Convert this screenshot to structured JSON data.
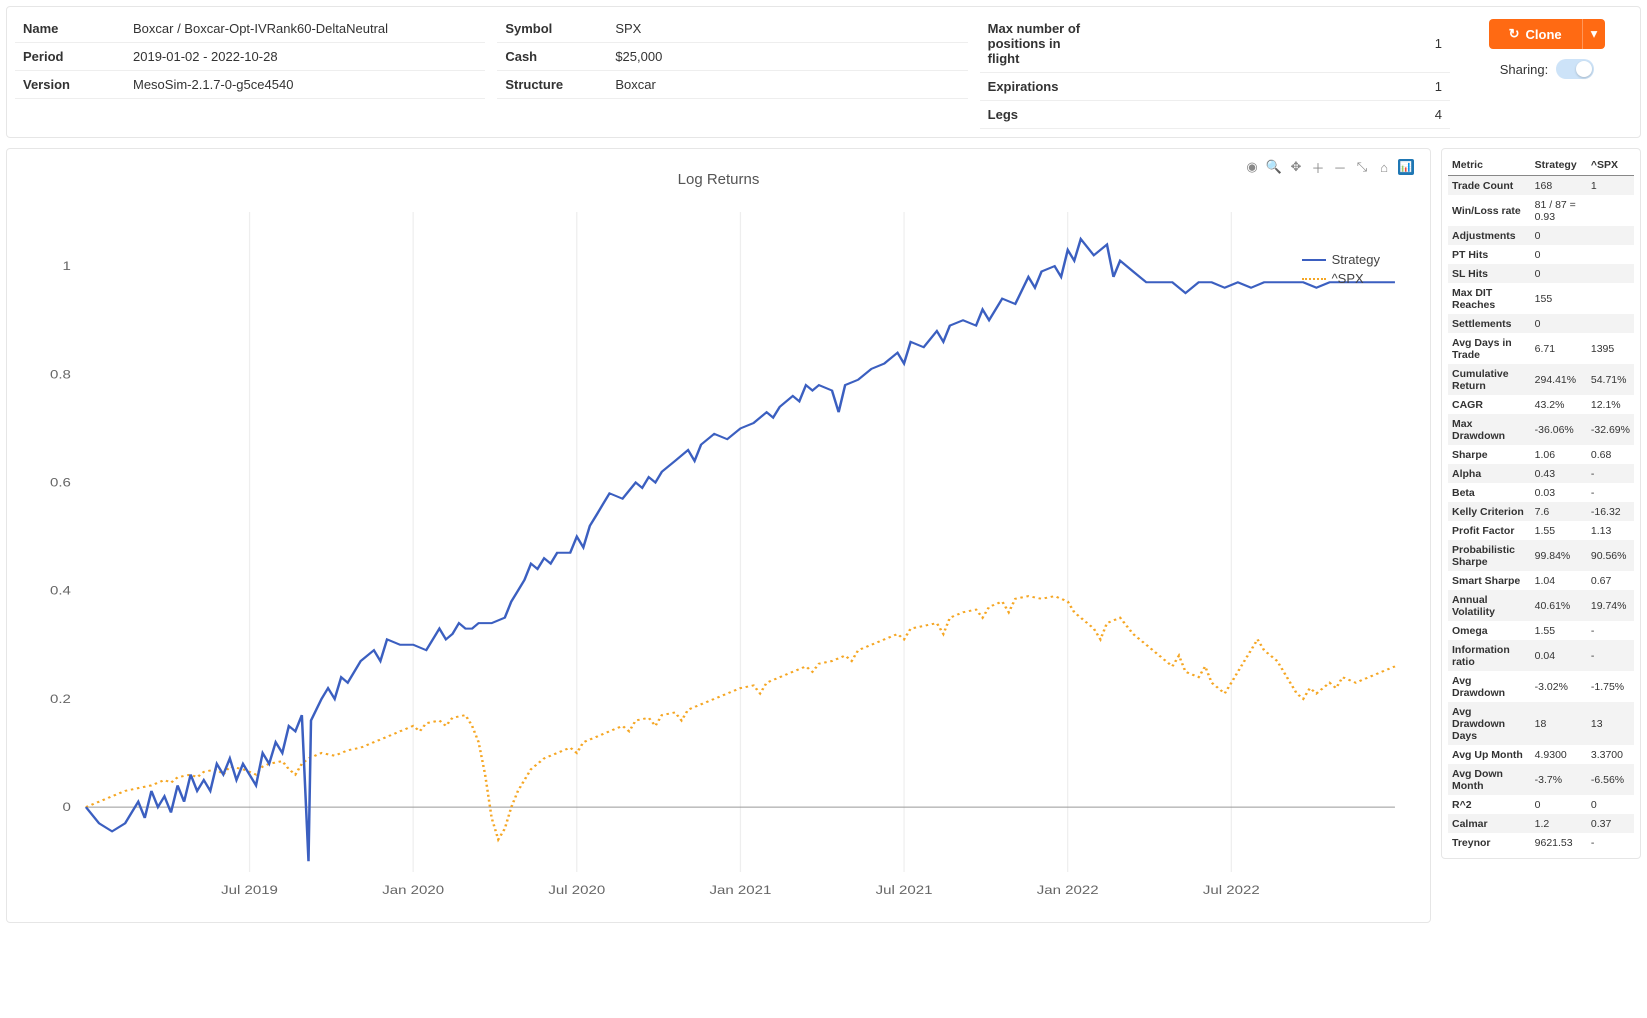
{
  "header": {
    "col1": [
      {
        "k": "Name",
        "v": "Boxcar / Boxcar-Opt-IVRank60-DeltaNeutral"
      },
      {
        "k": "Period",
        "v": "2019-01-02 - 2022-10-28"
      },
      {
        "k": "Version",
        "v": "MesoSim-2.1.7-0-g5ce4540"
      }
    ],
    "col2": [
      {
        "k": "Symbol",
        "v": "SPX"
      },
      {
        "k": "Cash",
        "v": "$25,000"
      },
      {
        "k": "Structure",
        "v": "Boxcar"
      }
    ],
    "col3": [
      {
        "k": "Max number of positions in flight",
        "v": "1"
      },
      {
        "k": "Expirations",
        "v": "1"
      },
      {
        "k": "Legs",
        "v": "4"
      }
    ],
    "clone_label": "Clone",
    "sharing_label": "Sharing:"
  },
  "chart": {
    "title": "Log Returns",
    "legend": [
      {
        "label": "Strategy",
        "color": "#3b5fc0",
        "style": "solid"
      },
      {
        "label": "^SPX",
        "color": "#f5a623",
        "style": "dash"
      }
    ],
    "x_ticks": [
      "Jul 2019",
      "Jan 2020",
      "Jul 2020",
      "Jan 2021",
      "Jul 2021",
      "Jan 2022",
      "Jul 2022"
    ],
    "x_tick_pos": [
      0.125,
      0.25,
      0.375,
      0.5,
      0.625,
      0.75,
      0.875
    ],
    "y_ticks": [
      0,
      0.2,
      0.4,
      0.6,
      0.8,
      1
    ],
    "ylim": [
      -0.12,
      1.1
    ],
    "xlim": [
      0,
      1
    ],
    "background": "#ffffff",
    "grid_color": "#eeeeee",
    "axis_color": "#999999",
    "title_fontsize": 15,
    "label_fontsize": 12,
    "strategy_color": "#3b5fc0",
    "spx_color": "#f5a623",
    "strategy": [
      [
        0.0,
        0.0
      ],
      [
        0.01,
        -0.03
      ],
      [
        0.02,
        -0.045
      ],
      [
        0.03,
        -0.03
      ],
      [
        0.04,
        0.01
      ],
      [
        0.045,
        -0.02
      ],
      [
        0.05,
        0.03
      ],
      [
        0.055,
        0.0
      ],
      [
        0.06,
        0.02
      ],
      [
        0.065,
        -0.01
      ],
      [
        0.07,
        0.04
      ],
      [
        0.075,
        0.01
      ],
      [
        0.08,
        0.06
      ],
      [
        0.085,
        0.03
      ],
      [
        0.09,
        0.05
      ],
      [
        0.095,
        0.03
      ],
      [
        0.1,
        0.08
      ],
      [
        0.105,
        0.06
      ],
      [
        0.11,
        0.09
      ],
      [
        0.115,
        0.05
      ],
      [
        0.12,
        0.08
      ],
      [
        0.13,
        0.04
      ],
      [
        0.135,
        0.1
      ],
      [
        0.14,
        0.08
      ],
      [
        0.145,
        0.12
      ],
      [
        0.15,
        0.1
      ],
      [
        0.155,
        0.15
      ],
      [
        0.16,
        0.14
      ],
      [
        0.165,
        0.17
      ],
      [
        0.17,
        -0.1
      ],
      [
        0.172,
        0.16
      ],
      [
        0.18,
        0.2
      ],
      [
        0.185,
        0.22
      ],
      [
        0.19,
        0.2
      ],
      [
        0.195,
        0.24
      ],
      [
        0.2,
        0.23
      ],
      [
        0.21,
        0.27
      ],
      [
        0.22,
        0.29
      ],
      [
        0.225,
        0.27
      ],
      [
        0.23,
        0.31
      ],
      [
        0.24,
        0.3
      ],
      [
        0.25,
        0.3
      ],
      [
        0.26,
        0.29
      ],
      [
        0.27,
        0.33
      ],
      [
        0.275,
        0.31
      ],
      [
        0.28,
        0.32
      ],
      [
        0.285,
        0.34
      ],
      [
        0.29,
        0.33
      ],
      [
        0.295,
        0.33
      ],
      [
        0.3,
        0.34
      ],
      [
        0.31,
        0.34
      ],
      [
        0.32,
        0.35
      ],
      [
        0.325,
        0.38
      ],
      [
        0.33,
        0.4
      ],
      [
        0.335,
        0.42
      ],
      [
        0.34,
        0.45
      ],
      [
        0.345,
        0.44
      ],
      [
        0.35,
        0.46
      ],
      [
        0.355,
        0.45
      ],
      [
        0.36,
        0.47
      ],
      [
        0.365,
        0.47
      ],
      [
        0.37,
        0.47
      ],
      [
        0.375,
        0.5
      ],
      [
        0.38,
        0.48
      ],
      [
        0.385,
        0.52
      ],
      [
        0.39,
        0.54
      ],
      [
        0.395,
        0.56
      ],
      [
        0.4,
        0.58
      ],
      [
        0.41,
        0.57
      ],
      [
        0.42,
        0.6
      ],
      [
        0.425,
        0.59
      ],
      [
        0.43,
        0.61
      ],
      [
        0.435,
        0.6
      ],
      [
        0.44,
        0.62
      ],
      [
        0.45,
        0.64
      ],
      [
        0.46,
        0.66
      ],
      [
        0.465,
        0.64
      ],
      [
        0.47,
        0.67
      ],
      [
        0.48,
        0.69
      ],
      [
        0.49,
        0.68
      ],
      [
        0.5,
        0.7
      ],
      [
        0.51,
        0.71
      ],
      [
        0.52,
        0.73
      ],
      [
        0.525,
        0.72
      ],
      [
        0.53,
        0.74
      ],
      [
        0.54,
        0.76
      ],
      [
        0.545,
        0.75
      ],
      [
        0.55,
        0.78
      ],
      [
        0.555,
        0.77
      ],
      [
        0.56,
        0.78
      ],
      [
        0.57,
        0.77
      ],
      [
        0.575,
        0.73
      ],
      [
        0.58,
        0.78
      ],
      [
        0.59,
        0.79
      ],
      [
        0.6,
        0.81
      ],
      [
        0.61,
        0.82
      ],
      [
        0.62,
        0.84
      ],
      [
        0.625,
        0.82
      ],
      [
        0.63,
        0.86
      ],
      [
        0.64,
        0.85
      ],
      [
        0.65,
        0.88
      ],
      [
        0.655,
        0.86
      ],
      [
        0.66,
        0.89
      ],
      [
        0.67,
        0.9
      ],
      [
        0.68,
        0.89
      ],
      [
        0.685,
        0.92
      ],
      [
        0.69,
        0.9
      ],
      [
        0.7,
        0.94
      ],
      [
        0.71,
        0.93
      ],
      [
        0.72,
        0.98
      ],
      [
        0.725,
        0.96
      ],
      [
        0.73,
        0.99
      ],
      [
        0.74,
        1.0
      ],
      [
        0.745,
        0.98
      ],
      [
        0.75,
        1.03
      ],
      [
        0.755,
        1.01
      ],
      [
        0.76,
        1.05
      ],
      [
        0.77,
        1.02
      ],
      [
        0.78,
        1.04
      ],
      [
        0.785,
        0.98
      ],
      [
        0.79,
        1.01
      ],
      [
        0.8,
        0.99
      ],
      [
        0.81,
        0.97
      ],
      [
        0.82,
        0.97
      ],
      [
        0.83,
        0.97
      ],
      [
        0.84,
        0.95
      ],
      [
        0.85,
        0.97
      ],
      [
        0.86,
        0.97
      ],
      [
        0.87,
        0.96
      ],
      [
        0.88,
        0.97
      ],
      [
        0.89,
        0.96
      ],
      [
        0.9,
        0.97
      ],
      [
        0.91,
        0.97
      ],
      [
        0.92,
        0.97
      ],
      [
        0.93,
        0.97
      ],
      [
        0.94,
        0.96
      ],
      [
        0.95,
        0.97
      ],
      [
        0.96,
        0.97
      ],
      [
        0.97,
        0.97
      ],
      [
        0.98,
        0.97
      ],
      [
        0.99,
        0.97
      ],
      [
        1.0,
        0.97
      ]
    ],
    "spx": [
      [
        0.0,
        0.0
      ],
      [
        0.01,
        0.01
      ],
      [
        0.02,
        0.02
      ],
      [
        0.03,
        0.03
      ],
      [
        0.04,
        0.035
      ],
      [
        0.05,
        0.04
      ],
      [
        0.06,
        0.05
      ],
      [
        0.065,
        0.045
      ],
      [
        0.07,
        0.055
      ],
      [
        0.08,
        0.06
      ],
      [
        0.085,
        0.055
      ],
      [
        0.09,
        0.065
      ],
      [
        0.1,
        0.07
      ],
      [
        0.105,
        0.06
      ],
      [
        0.11,
        0.075
      ],
      [
        0.12,
        0.07
      ],
      [
        0.13,
        0.06
      ],
      [
        0.135,
        0.075
      ],
      [
        0.14,
        0.08
      ],
      [
        0.15,
        0.085
      ],
      [
        0.155,
        0.07
      ],
      [
        0.16,
        0.06
      ],
      [
        0.165,
        0.08
      ],
      [
        0.17,
        0.09
      ],
      [
        0.18,
        0.1
      ],
      [
        0.19,
        0.095
      ],
      [
        0.2,
        0.105
      ],
      [
        0.21,
        0.11
      ],
      [
        0.22,
        0.12
      ],
      [
        0.23,
        0.13
      ],
      [
        0.24,
        0.14
      ],
      [
        0.25,
        0.15
      ],
      [
        0.255,
        0.14
      ],
      [
        0.26,
        0.155
      ],
      [
        0.27,
        0.16
      ],
      [
        0.275,
        0.15
      ],
      [
        0.28,
        0.165
      ],
      [
        0.29,
        0.17
      ],
      [
        0.295,
        0.15
      ],
      [
        0.3,
        0.12
      ],
      [
        0.305,
        0.06
      ],
      [
        0.31,
        -0.02
      ],
      [
        0.315,
        -0.06
      ],
      [
        0.32,
        -0.04
      ],
      [
        0.325,
        0.0
      ],
      [
        0.33,
        0.03
      ],
      [
        0.335,
        0.05
      ],
      [
        0.34,
        0.07
      ],
      [
        0.35,
        0.09
      ],
      [
        0.36,
        0.1
      ],
      [
        0.37,
        0.11
      ],
      [
        0.375,
        0.1
      ],
      [
        0.38,
        0.12
      ],
      [
        0.39,
        0.13
      ],
      [
        0.4,
        0.14
      ],
      [
        0.41,
        0.15
      ],
      [
        0.415,
        0.14
      ],
      [
        0.42,
        0.16
      ],
      [
        0.43,
        0.165
      ],
      [
        0.435,
        0.15
      ],
      [
        0.44,
        0.17
      ],
      [
        0.45,
        0.175
      ],
      [
        0.455,
        0.16
      ],
      [
        0.46,
        0.18
      ],
      [
        0.47,
        0.19
      ],
      [
        0.48,
        0.2
      ],
      [
        0.49,
        0.21
      ],
      [
        0.5,
        0.22
      ],
      [
        0.51,
        0.225
      ],
      [
        0.515,
        0.21
      ],
      [
        0.52,
        0.23
      ],
      [
        0.53,
        0.24
      ],
      [
        0.54,
        0.25
      ],
      [
        0.55,
        0.26
      ],
      [
        0.555,
        0.25
      ],
      [
        0.56,
        0.265
      ],
      [
        0.57,
        0.27
      ],
      [
        0.58,
        0.28
      ],
      [
        0.585,
        0.27
      ],
      [
        0.59,
        0.29
      ],
      [
        0.6,
        0.3
      ],
      [
        0.61,
        0.31
      ],
      [
        0.62,
        0.32
      ],
      [
        0.625,
        0.31
      ],
      [
        0.63,
        0.33
      ],
      [
        0.64,
        0.335
      ],
      [
        0.65,
        0.34
      ],
      [
        0.655,
        0.32
      ],
      [
        0.66,
        0.35
      ],
      [
        0.67,
        0.36
      ],
      [
        0.68,
        0.365
      ],
      [
        0.685,
        0.35
      ],
      [
        0.69,
        0.37
      ],
      [
        0.7,
        0.38
      ],
      [
        0.705,
        0.36
      ],
      [
        0.71,
        0.385
      ],
      [
        0.72,
        0.39
      ],
      [
        0.73,
        0.385
      ],
      [
        0.74,
        0.39
      ],
      [
        0.75,
        0.38
      ],
      [
        0.755,
        0.36
      ],
      [
        0.76,
        0.35
      ],
      [
        0.77,
        0.33
      ],
      [
        0.775,
        0.31
      ],
      [
        0.78,
        0.34
      ],
      [
        0.79,
        0.35
      ],
      [
        0.8,
        0.32
      ],
      [
        0.81,
        0.3
      ],
      [
        0.82,
        0.28
      ],
      [
        0.83,
        0.26
      ],
      [
        0.835,
        0.28
      ],
      [
        0.84,
        0.25
      ],
      [
        0.85,
        0.24
      ],
      [
        0.855,
        0.26
      ],
      [
        0.86,
        0.23
      ],
      [
        0.87,
        0.21
      ],
      [
        0.875,
        0.23
      ],
      [
        0.88,
        0.25
      ],
      [
        0.885,
        0.27
      ],
      [
        0.89,
        0.29
      ],
      [
        0.895,
        0.31
      ],
      [
        0.9,
        0.29
      ],
      [
        0.91,
        0.27
      ],
      [
        0.915,
        0.25
      ],
      [
        0.92,
        0.23
      ],
      [
        0.925,
        0.21
      ],
      [
        0.93,
        0.2
      ],
      [
        0.935,
        0.22
      ],
      [
        0.94,
        0.21
      ],
      [
        0.95,
        0.23
      ],
      [
        0.955,
        0.22
      ],
      [
        0.96,
        0.24
      ],
      [
        0.97,
        0.23
      ],
      [
        0.98,
        0.24
      ],
      [
        0.99,
        0.25
      ],
      [
        1.0,
        0.26
      ]
    ]
  },
  "metrics": {
    "headers": [
      "Metric",
      "Strategy",
      "^SPX"
    ],
    "rows": [
      [
        "Trade Count",
        "168",
        "1"
      ],
      [
        "Win/Loss rate",
        "81 / 87 = 0.93",
        ""
      ],
      [
        "Adjustments",
        "0",
        ""
      ],
      [
        "PT Hits",
        "0",
        ""
      ],
      [
        "SL Hits",
        "0",
        ""
      ],
      [
        "Max DIT Reaches",
        "155",
        ""
      ],
      [
        "Settlements",
        "0",
        ""
      ],
      [
        "Avg Days in Trade",
        "6.71",
        "1395"
      ],
      [
        "Cumulative Return",
        "294.41%",
        "54.71%"
      ],
      [
        "CAGR",
        "43.2%",
        "12.1%"
      ],
      [
        "Max Drawdown",
        "-36.06%",
        "-32.69%"
      ],
      [
        "Sharpe",
        "1.06",
        "0.68"
      ],
      [
        "Alpha",
        "0.43",
        "-"
      ],
      [
        "Beta",
        "0.03",
        "-"
      ],
      [
        "Kelly Criterion",
        "7.6",
        "-16.32"
      ],
      [
        "Profit Factor",
        "1.55",
        "1.13"
      ],
      [
        "Probabilistic Sharpe",
        "99.84%",
        "90.56%"
      ],
      [
        "Smart Sharpe",
        "1.04",
        "0.67"
      ],
      [
        "Annual Volatility",
        "40.61%",
        "19.74%"
      ],
      [
        "Omega",
        "1.55",
        "-"
      ],
      [
        "Information ratio",
        "0.04",
        "-"
      ],
      [
        "Avg Drawdown",
        "-3.02%",
        "-1.75%"
      ],
      [
        "Avg Drawdown Days",
        "18",
        "13"
      ],
      [
        "Avg Up Month",
        "4.9300",
        "3.3700"
      ],
      [
        "Avg Down Month",
        "-3.7%",
        "-6.56%"
      ],
      [
        "R^2",
        "0",
        "0"
      ],
      [
        "Calmar",
        "1.2",
        "0.37"
      ],
      [
        "Treynor",
        "9621.53",
        "-"
      ]
    ]
  }
}
